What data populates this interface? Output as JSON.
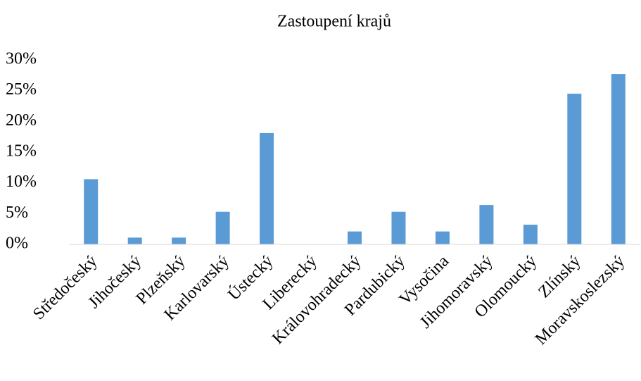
{
  "chart_data": {
    "type": "bar",
    "title": "Zastoupení krajů",
    "categories": [
      "Středočeský",
      "Jihočeský",
      "Plzeňský",
      "Karlovarský",
      "Ústecký",
      "Liberecký",
      "Královohradecký",
      "Pardubický",
      "Vysočina",
      "Jihomoravský",
      "Olomoucký",
      "Zlínský",
      "Moravskoslezský"
    ],
    "values": [
      10.6,
      1.1,
      1.1,
      5.3,
      18.1,
      0,
      2.1,
      5.3,
      2.1,
      6.4,
      3.2,
      24.5,
      27.7
    ],
    "color": "#5b9bd5",
    "ylim": [
      0,
      30
    ],
    "yticks": [
      {
        "value": 0,
        "label": "0%"
      },
      {
        "value": 5,
        "label": "5%"
      },
      {
        "value": 10,
        "label": "10%"
      },
      {
        "value": 15,
        "label": "15%"
      },
      {
        "value": 20,
        "label": "20%"
      },
      {
        "value": 25,
        "label": "25%"
      },
      {
        "value": 30,
        "label": "30%"
      }
    ],
    "grid": false
  }
}
